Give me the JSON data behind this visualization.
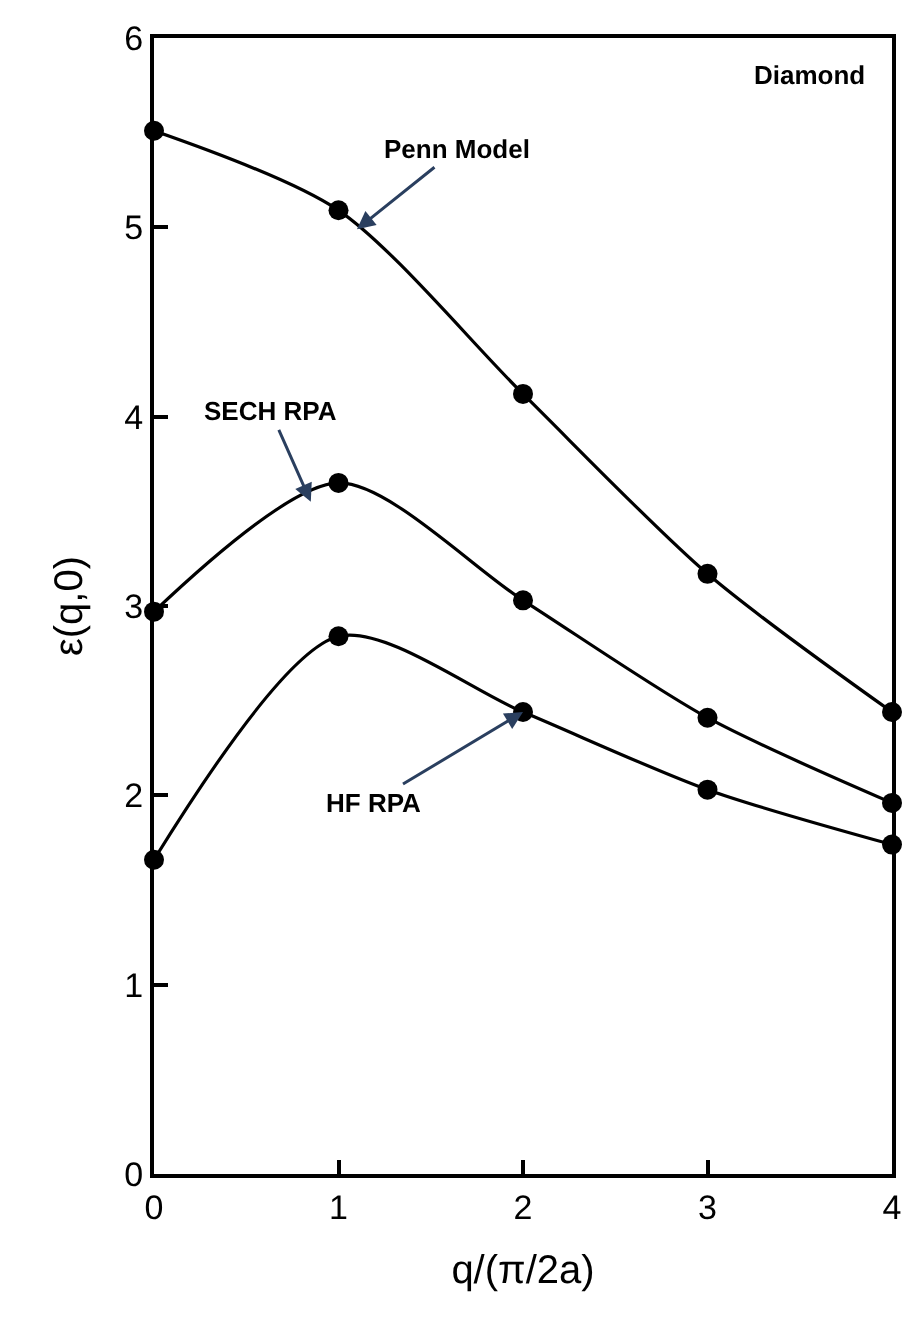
{
  "chart_data": {
    "type": "line",
    "xlabel": "q/(π/2a)",
    "ylabel": "ε(q,0)",
    "x": [
      0,
      1,
      2,
      3,
      4
    ],
    "series": [
      {
        "color": "#000000",
        "values": [
          5.51,
          5.09,
          4.12,
          3.17,
          2.44
        ]
      },
      {
        "color": "#000000",
        "values": [
          2.97,
          3.65,
          3.03,
          2.41,
          1.96
        ]
      },
      {
        "color": "#000000",
        "values": [
          1.66,
          2.84,
          2.44,
          2.03,
          1.74
        ]
      }
    ],
    "annotations": [
      {
        "text": "Penn Model",
        "x": 1.1,
        "y": 4.99
      },
      {
        "text": "SECH RPA",
        "x": 0.85,
        "y": 3.55
      },
      {
        "text": "HF RPA",
        "x": 2,
        "y": 2.44
      },
      "Diamond"
    ],
    "xlim": [
      0,
      4
    ],
    "ylim": [
      0,
      6
    ],
    "xticks": [
      0,
      1,
      2,
      3,
      4
    ],
    "yticks": [
      0,
      1,
      2,
      3,
      4,
      5,
      6
    ],
    "marker": "circle",
    "line_style": "solid"
  }
}
